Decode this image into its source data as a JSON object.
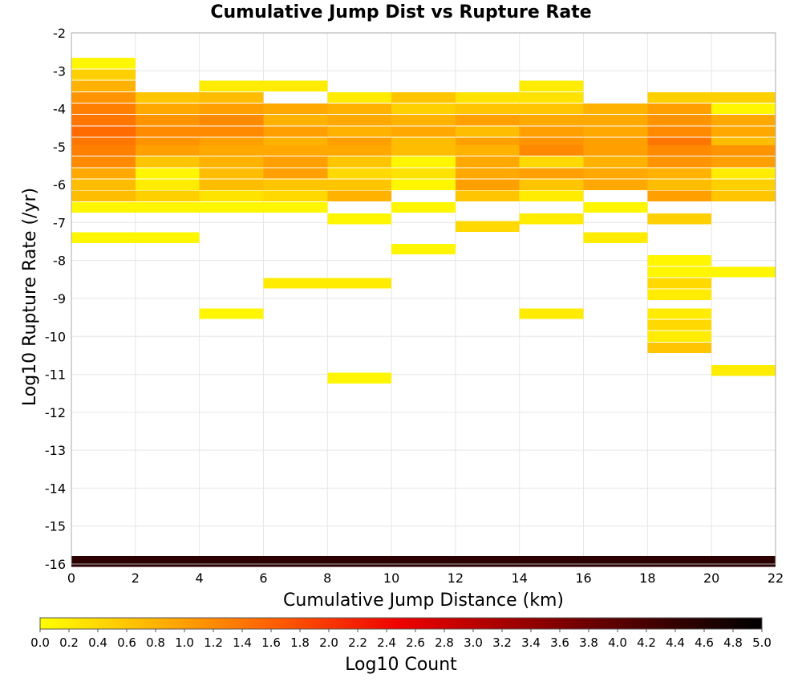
{
  "chart_data": {
    "type": "heatmap",
    "title": "Cumulative Jump Dist vs Rupture Rate",
    "xlabel": "Cumulative Jump Distance (km)",
    "ylabel": "Log10 Rupture Rate (/yr)",
    "xlim": [
      0,
      22
    ],
    "ylim": [
      -16,
      -2
    ],
    "x_ticks": [
      "0",
      "2",
      "4",
      "6",
      "8",
      "10",
      "12",
      "14",
      "16",
      "18",
      "20",
      "22"
    ],
    "y_ticks": [
      "-2",
      "-3",
      "-4",
      "-5",
      "-6",
      "-7",
      "-8",
      "-9",
      "-10",
      "-11",
      "-12",
      "-13",
      "-14",
      "-15",
      "-16"
    ],
    "bin_width_x": 2,
    "bin_height_y": 0.28,
    "grid": true,
    "colorbar": {
      "label": "Log10 Count",
      "min": 0.0,
      "max": 5.0,
      "ticks": [
        "0.0",
        "0.2",
        "0.4",
        "0.6",
        "0.8",
        "1.0",
        "1.2",
        "1.4",
        "1.6",
        "1.8",
        "2.0",
        "2.2",
        "2.4",
        "2.6",
        "2.8",
        "3.0",
        "3.2",
        "3.4",
        "3.6",
        "3.8",
        "4.0",
        "4.2",
        "4.4",
        "4.6",
        "4.8",
        "5.0"
      ],
      "colors": [
        "#ffff00",
        "#ffb000",
        "#ff5a00",
        "#ee0000",
        "#9a0000",
        "#4a0000",
        "#000000"
      ]
    },
    "bins": [
      {
        "x": 1,
        "y": -2.8,
        "v": 0.1
      },
      {
        "x": 1,
        "y": -3.1,
        "v": 0.5
      },
      {
        "x": 1,
        "y": -3.4,
        "v": 0.8
      },
      {
        "x": 1,
        "y": -3.7,
        "v": 1.1
      },
      {
        "x": 1,
        "y": -4.0,
        "v": 1.3
      },
      {
        "x": 1,
        "y": -4.3,
        "v": 1.4
      },
      {
        "x": 1,
        "y": -4.6,
        "v": 1.5
      },
      {
        "x": 1,
        "y": -4.9,
        "v": 1.4
      },
      {
        "x": 1,
        "y": -5.1,
        "v": 1.3
      },
      {
        "x": 1,
        "y": -5.4,
        "v": 1.2
      },
      {
        "x": 1,
        "y": -5.7,
        "v": 0.9
      },
      {
        "x": 1,
        "y": -6.0,
        "v": 0.7
      },
      {
        "x": 1,
        "y": -6.3,
        "v": 0.7
      },
      {
        "x": 1,
        "y": -6.6,
        "v": 0.1
      },
      {
        "x": 1,
        "y": -7.4,
        "v": 0.1
      },
      {
        "x": 3,
        "y": -3.7,
        "v": 0.6
      },
      {
        "x": 3,
        "y": -4.0,
        "v": 0.9
      },
      {
        "x": 3,
        "y": -4.3,
        "v": 1.1
      },
      {
        "x": 3,
        "y": -4.6,
        "v": 1.2
      },
      {
        "x": 3,
        "y": -4.9,
        "v": 1.1
      },
      {
        "x": 3,
        "y": -5.1,
        "v": 1.0
      },
      {
        "x": 3,
        "y": -5.4,
        "v": 0.6
      },
      {
        "x": 3,
        "y": -5.7,
        "v": 0.1
      },
      {
        "x": 3,
        "y": -6.0,
        "v": 0.2
      },
      {
        "x": 3,
        "y": -6.3,
        "v": 0.5
      },
      {
        "x": 3,
        "y": -6.6,
        "v": 0.1
      },
      {
        "x": 3,
        "y": -7.4,
        "v": 0.1
      },
      {
        "x": 5,
        "y": -3.4,
        "v": 0.2
      },
      {
        "x": 5,
        "y": -3.7,
        "v": 0.7
      },
      {
        "x": 5,
        "y": -4.0,
        "v": 1.0
      },
      {
        "x": 5,
        "y": -4.3,
        "v": 1.2
      },
      {
        "x": 5,
        "y": -4.6,
        "v": 1.2
      },
      {
        "x": 5,
        "y": -4.9,
        "v": 1.0
      },
      {
        "x": 5,
        "y": -5.1,
        "v": 0.9
      },
      {
        "x": 5,
        "y": -5.4,
        "v": 0.8
      },
      {
        "x": 5,
        "y": -5.7,
        "v": 0.7
      },
      {
        "x": 5,
        "y": -6.0,
        "v": 0.7
      },
      {
        "x": 5,
        "y": -6.3,
        "v": 0.3
      },
      {
        "x": 5,
        "y": -6.6,
        "v": 0.1
      },
      {
        "x": 5,
        "y": -9.4,
        "v": 0.1
      },
      {
        "x": 7,
        "y": -3.4,
        "v": 0.2
      },
      {
        "x": 7,
        "y": -4.0,
        "v": 0.9
      },
      {
        "x": 7,
        "y": -4.3,
        "v": 0.8
      },
      {
        "x": 7,
        "y": -4.6,
        "v": 1.0
      },
      {
        "x": 7,
        "y": -4.9,
        "v": 0.8
      },
      {
        "x": 7,
        "y": -5.1,
        "v": 0.9
      },
      {
        "x": 7,
        "y": -5.4,
        "v": 1.0
      },
      {
        "x": 7,
        "y": -5.7,
        "v": 1.0
      },
      {
        "x": 7,
        "y": -6.0,
        "v": 0.6
      },
      {
        "x": 7,
        "y": -6.3,
        "v": 0.4
      },
      {
        "x": 7,
        "y": -6.6,
        "v": 0.1
      },
      {
        "x": 7,
        "y": -8.6,
        "v": 0.2
      },
      {
        "x": 9,
        "y": -3.7,
        "v": 0.2
      },
      {
        "x": 9,
        "y": -4.0,
        "v": 0.8
      },
      {
        "x": 9,
        "y": -4.3,
        "v": 0.9
      },
      {
        "x": 9,
        "y": -4.6,
        "v": 0.8
      },
      {
        "x": 9,
        "y": -4.9,
        "v": 1.0
      },
      {
        "x": 9,
        "y": -5.1,
        "v": 0.9
      },
      {
        "x": 9,
        "y": -5.4,
        "v": 0.6
      },
      {
        "x": 9,
        "y": -5.7,
        "v": 0.4
      },
      {
        "x": 9,
        "y": -6.0,
        "v": 0.6
      },
      {
        "x": 9,
        "y": -6.3,
        "v": 0.8
      },
      {
        "x": 9,
        "y": -6.9,
        "v": 0.1
      },
      {
        "x": 9,
        "y": -8.6,
        "v": 0.2
      },
      {
        "x": 9,
        "y": -11.1,
        "v": 0.1
      },
      {
        "x": 11,
        "y": -3.7,
        "v": 0.6
      },
      {
        "x": 11,
        "y": -4.0,
        "v": 0.5
      },
      {
        "x": 11,
        "y": -4.3,
        "v": 0.8
      },
      {
        "x": 11,
        "y": -4.6,
        "v": 0.9
      },
      {
        "x": 11,
        "y": -4.9,
        "v": 0.7
      },
      {
        "x": 11,
        "y": -5.1,
        "v": 0.7
      },
      {
        "x": 11,
        "y": -5.4,
        "v": 0.1
      },
      {
        "x": 11,
        "y": -5.7,
        "v": 0.3
      },
      {
        "x": 11,
        "y": -6.0,
        "v": 0.1
      },
      {
        "x": 11,
        "y": -6.6,
        "v": 0.1
      },
      {
        "x": 11,
        "y": -7.7,
        "v": 0.1
      },
      {
        "x": 13,
        "y": -3.7,
        "v": 0.3
      },
      {
        "x": 13,
        "y": -4.0,
        "v": 0.6
      },
      {
        "x": 13,
        "y": -4.3,
        "v": 1.0
      },
      {
        "x": 13,
        "y": -4.6,
        "v": 0.7
      },
      {
        "x": 13,
        "y": -4.9,
        "v": 1.0
      },
      {
        "x": 13,
        "y": -5.1,
        "v": 0.8
      },
      {
        "x": 13,
        "y": -5.4,
        "v": 0.9
      },
      {
        "x": 13,
        "y": -5.7,
        "v": 0.9
      },
      {
        "x": 13,
        "y": -6.0,
        "v": 1.0
      },
      {
        "x": 13,
        "y": -6.3,
        "v": 0.6
      },
      {
        "x": 13,
        "y": -7.1,
        "v": 0.4
      },
      {
        "x": 15,
        "y": -3.4,
        "v": 0.2
      },
      {
        "x": 15,
        "y": -3.7,
        "v": 0.3
      },
      {
        "x": 15,
        "y": -4.0,
        "v": 0.6
      },
      {
        "x": 15,
        "y": -4.3,
        "v": 0.9
      },
      {
        "x": 15,
        "y": -4.6,
        "v": 1.0
      },
      {
        "x": 15,
        "y": -4.9,
        "v": 1.1
      },
      {
        "x": 15,
        "y": -5.1,
        "v": 1.2
      },
      {
        "x": 15,
        "y": -5.4,
        "v": 0.4
      },
      {
        "x": 15,
        "y": -5.7,
        "v": 1.0
      },
      {
        "x": 15,
        "y": -6.0,
        "v": 0.6
      },
      {
        "x": 15,
        "y": -6.3,
        "v": 0.2
      },
      {
        "x": 15,
        "y": -6.9,
        "v": 0.2
      },
      {
        "x": 15,
        "y": -9.4,
        "v": 0.2
      },
      {
        "x": 17,
        "y": -4.0,
        "v": 0.8
      },
      {
        "x": 17,
        "y": -4.3,
        "v": 0.9
      },
      {
        "x": 17,
        "y": -4.6,
        "v": 0.9
      },
      {
        "x": 17,
        "y": -4.9,
        "v": 1.0
      },
      {
        "x": 17,
        "y": -5.1,
        "v": 1.0
      },
      {
        "x": 17,
        "y": -5.4,
        "v": 0.8
      },
      {
        "x": 17,
        "y": -5.7,
        "v": 0.9
      },
      {
        "x": 17,
        "y": -6.0,
        "v": 0.9
      },
      {
        "x": 17,
        "y": -6.6,
        "v": 0.1
      },
      {
        "x": 17,
        "y": -7.4,
        "v": 0.2
      },
      {
        "x": 19,
        "y": -3.7,
        "v": 0.5
      },
      {
        "x": 19,
        "y": -4.0,
        "v": 1.0
      },
      {
        "x": 19,
        "y": -4.3,
        "v": 1.1
      },
      {
        "x": 19,
        "y": -4.6,
        "v": 1.2
      },
      {
        "x": 19,
        "y": -4.9,
        "v": 1.4
      },
      {
        "x": 19,
        "y": -5.1,
        "v": 1.2
      },
      {
        "x": 19,
        "y": -5.4,
        "v": 1.1
      },
      {
        "x": 19,
        "y": -5.7,
        "v": 0.8
      },
      {
        "x": 19,
        "y": -6.0,
        "v": 0.7
      },
      {
        "x": 19,
        "y": -6.3,
        "v": 1.0
      },
      {
        "x": 19,
        "y": -6.9,
        "v": 0.5
      },
      {
        "x": 19,
        "y": -8.0,
        "v": 0.1
      },
      {
        "x": 19,
        "y": -8.3,
        "v": 0.1
      },
      {
        "x": 19,
        "y": -8.6,
        "v": 0.4
      },
      {
        "x": 19,
        "y": -8.9,
        "v": 0.2
      },
      {
        "x": 19,
        "y": -9.4,
        "v": 0.2
      },
      {
        "x": 19,
        "y": -9.7,
        "v": 0.4
      },
      {
        "x": 19,
        "y": -10.0,
        "v": 0.2
      },
      {
        "x": 19,
        "y": -10.3,
        "v": 0.6
      },
      {
        "x": 21,
        "y": -3.7,
        "v": 0.5
      },
      {
        "x": 21,
        "y": -4.0,
        "v": 0.1
      },
      {
        "x": 21,
        "y": -4.3,
        "v": 0.9
      },
      {
        "x": 21,
        "y": -4.6,
        "v": 0.9
      },
      {
        "x": 21,
        "y": -4.9,
        "v": 0.7
      },
      {
        "x": 21,
        "y": -5.1,
        "v": 1.1
      },
      {
        "x": 21,
        "y": -5.4,
        "v": 1.0
      },
      {
        "x": 21,
        "y": -5.7,
        "v": 0.2
      },
      {
        "x": 21,
        "y": -6.0,
        "v": 0.5
      },
      {
        "x": 21,
        "y": -6.3,
        "v": 0.6
      },
      {
        "x": 21,
        "y": -8.3,
        "v": 0.1
      },
      {
        "x": 21,
        "y": -10.9,
        "v": 0.2
      },
      {
        "x": 1,
        "y": -15.93,
        "v": 4.5
      },
      {
        "x": 3,
        "y": -15.93,
        "v": 4.5
      },
      {
        "x": 5,
        "y": -15.93,
        "v": 4.5
      },
      {
        "x": 7,
        "y": -15.93,
        "v": 4.5
      },
      {
        "x": 9,
        "y": -15.93,
        "v": 4.5
      },
      {
        "x": 11,
        "y": -15.93,
        "v": 4.5
      },
      {
        "x": 13,
        "y": -15.93,
        "v": 4.5
      },
      {
        "x": 15,
        "y": -15.93,
        "v": 4.5
      },
      {
        "x": 17,
        "y": -15.93,
        "v": 4.5
      },
      {
        "x": 19,
        "y": -15.93,
        "v": 4.5
      },
      {
        "x": 21,
        "y": -15.93,
        "v": 4.5
      }
    ]
  }
}
